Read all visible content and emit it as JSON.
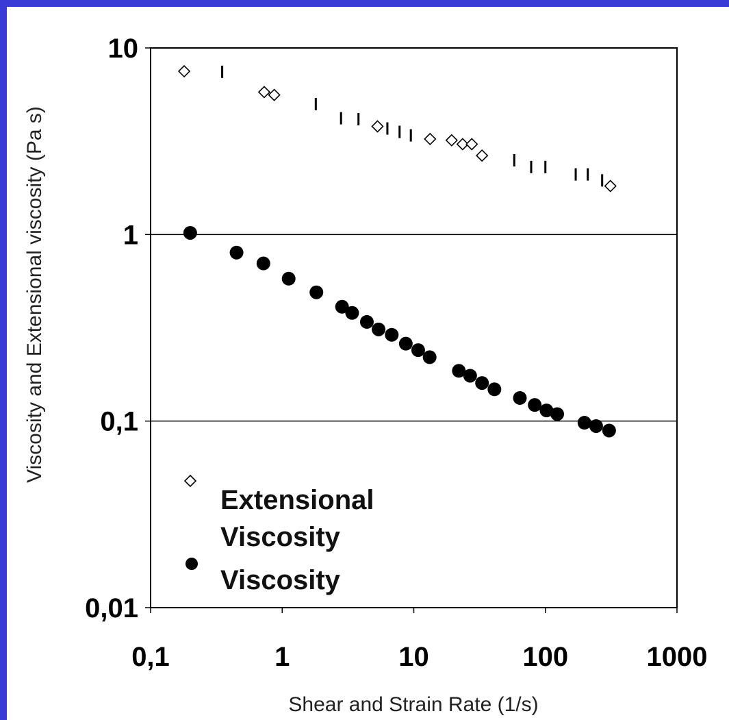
{
  "chart_data": {
    "type": "scatter",
    "xlabel": "Shear and Strain Rate (1/s)",
    "ylabel": "Viscosity and Extensional viscosity (Pa s)",
    "xscale": "log",
    "yscale": "log",
    "xlim": [
      0.1,
      1000
    ],
    "ylim": [
      0.01,
      10
    ],
    "x_ticks": [
      {
        "value": 0.1,
        "label": "0,1"
      },
      {
        "value": 1,
        "label": "1"
      },
      {
        "value": 10,
        "label": "10"
      },
      {
        "value": 100,
        "label": "100"
      },
      {
        "value": 1000,
        "label": "1000"
      }
    ],
    "y_ticks": [
      {
        "value": 0.01,
        "label": "0,01"
      },
      {
        "value": 0.1,
        "label": "0,1"
      },
      {
        "value": 1,
        "label": "1"
      },
      {
        "value": 10,
        "label": "10"
      }
    ],
    "gridlines_y": [
      0.1,
      1
    ],
    "legend": {
      "position": "bottom-left",
      "entries": [
        {
          "lines": [
            "Extensional",
            "Viscosity"
          ],
          "marker": "open-diamond"
        },
        {
          "lines": [
            "Viscosity"
          ],
          "marker": "filled-circle"
        }
      ]
    },
    "series": [
      {
        "name": "Extensional Viscosity",
        "marker": "open-diamond",
        "color": "#000000",
        "points": [
          [
            0.18,
            7.5
          ],
          [
            0.73,
            5.8
          ],
          [
            0.87,
            5.6
          ],
          [
            5.3,
            3.8
          ],
          [
            13.3,
            3.25
          ],
          [
            19.4,
            3.2
          ],
          [
            23.5,
            3.05
          ],
          [
            27.6,
            3.05
          ],
          [
            33.0,
            2.65
          ],
          [
            312,
            1.82
          ]
        ]
      },
      {
        "name": "Extensional Viscosity (bar markers)",
        "marker": "vertical-bar",
        "color": "#000000",
        "points": [
          [
            0.35,
            7.45
          ],
          [
            1.8,
            5.0
          ],
          [
            2.8,
            4.2
          ],
          [
            3.8,
            4.15
          ],
          [
            6.3,
            3.7
          ],
          [
            7.8,
            3.55
          ],
          [
            9.5,
            3.4
          ],
          [
            58,
            2.5
          ],
          [
            78,
            2.3
          ],
          [
            100,
            2.3
          ],
          [
            170,
            2.1
          ],
          [
            210,
            2.1
          ],
          [
            270,
            1.95
          ]
        ]
      },
      {
        "name": "Viscosity",
        "marker": "filled-circle",
        "color": "#000000",
        "points": [
          [
            0.2,
            1.02
          ],
          [
            0.45,
            0.8
          ],
          [
            0.72,
            0.7
          ],
          [
            1.12,
            0.58
          ],
          [
            1.82,
            0.49
          ],
          [
            2.85,
            0.41
          ],
          [
            3.4,
            0.38
          ],
          [
            4.4,
            0.34
          ],
          [
            5.4,
            0.31
          ],
          [
            6.8,
            0.29
          ],
          [
            8.7,
            0.26
          ],
          [
            10.8,
            0.24
          ],
          [
            13.2,
            0.22
          ],
          [
            22,
            0.186
          ],
          [
            26.8,
            0.175
          ],
          [
            33,
            0.16
          ],
          [
            41,
            0.148
          ],
          [
            64,
            0.133
          ],
          [
            83,
            0.122
          ],
          [
            102,
            0.114
          ],
          [
            123,
            0.109
          ],
          [
            198,
            0.098
          ],
          [
            243,
            0.094
          ],
          [
            305,
            0.089
          ]
        ]
      }
    ]
  }
}
